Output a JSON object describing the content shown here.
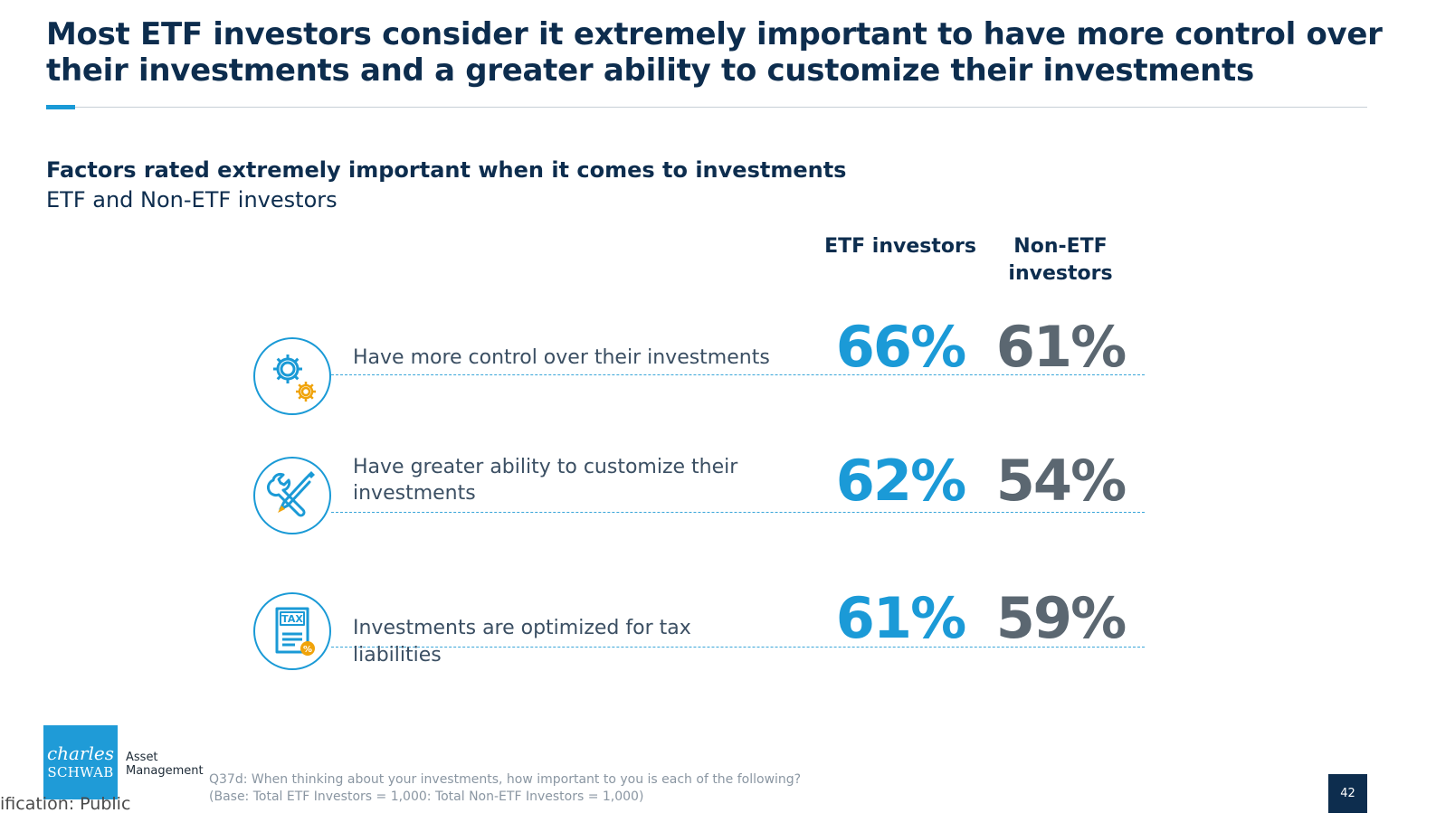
{
  "header": {
    "title": "Most ETF investors consider it extremely important to have more control over their investments and a greater ability to customize their investments"
  },
  "section": {
    "subtitle": "Factors rated extremely important when it comes to investments",
    "subtitle2": "ETF and Non-ETF investors"
  },
  "columns": {
    "etf": "ETF investors",
    "non_etf": "Non-ETF investors"
  },
  "rows": [
    {
      "icon": "gears-icon",
      "label": "Have more control over their investments",
      "etf": "66%",
      "non_etf": "61%"
    },
    {
      "icon": "wrench-screwdriver-icon",
      "label": "Have greater ability to customize their investments",
      "etf": "62%",
      "non_etf": "54%"
    },
    {
      "icon": "tax-document-icon",
      "label": "Investments are optimized for tax liabilities",
      "etf": "61%",
      "non_etf": "59%"
    }
  ],
  "icon_text": {
    "tax": "TAX",
    "percent": "%"
  },
  "footer": {
    "logo_line1": "charles",
    "logo_line2": "SCHWAB",
    "logo_am_line1": "Asset",
    "logo_am_line2": "Management",
    "footnote_line1": "Q37d: When thinking about your investments, how important to you is each of the following?",
    "footnote_line2": "(Base: Total ETF Investors = 1,000: Total Non-ETF Investors = 1,000)",
    "classification": "ification: Public",
    "page_number": "42"
  },
  "colors": {
    "navy": "#0d2d4e",
    "accent_blue": "#1b9ad7",
    "gray_value": "#5b6771",
    "icon_orange": "#f0a30a"
  }
}
